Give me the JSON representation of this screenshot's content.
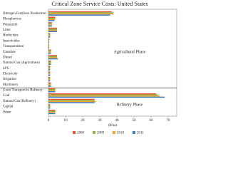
{
  "chart_data": {
    "type": "barh",
    "title": "Critical Zone Service Costs: United States",
    "xlabel": "($/ha)",
    "categories": [
      "Nitrogen Fertilizer Production",
      "Phosphorous",
      "Potassium",
      "Lime",
      "Herbicides",
      "Insecticides",
      "Transportation",
      "Gasoline",
      "Diesel",
      "Natural Gas (Agriculture)",
      "LPG",
      "Electricity",
      "Irrigation",
      "Machinery",
      "Grain Transport to Refinery",
      "Coal",
      "Natural Gas (Refinery)",
      "Capital",
      "Water"
    ],
    "series": [
      {
        "name": "2008",
        "color": "#e8542c",
        "values": [
          37,
          4,
          2,
          5,
          1,
          0.5,
          0.5,
          1.5,
          5,
          1.5,
          1,
          1,
          1,
          1.5,
          4,
          63,
          27,
          1,
          4
        ]
      },
      {
        "name": "2009",
        "color": "#8cb43e",
        "values": [
          38,
          4,
          2,
          5,
          1,
          0.5,
          0.5,
          1.5,
          5,
          1.5,
          1,
          1,
          1,
          1.5,
          4,
          64,
          27,
          1,
          4
        ]
      },
      {
        "name": "2010",
        "color": "#f2a22e",
        "values": [
          38,
          4,
          2,
          5,
          1,
          0.5,
          0.5,
          1.5,
          5,
          1.5,
          1,
          1,
          1,
          1.5,
          4,
          65,
          28,
          1,
          4
        ]
      },
      {
        "name": "2011",
        "color": "#3b7cc8",
        "values": [
          36,
          3.5,
          2,
          5,
          1,
          0.5,
          0.5,
          1.5,
          5.5,
          1.5,
          1,
          1,
          1,
          1.5,
          4,
          68,
          27,
          1,
          4
        ]
      }
    ],
    "xlim": [
      0,
      75
    ],
    "xticks": [
      0,
      10,
      20,
      30,
      40,
      50,
      60,
      70
    ],
    "annotations": [
      "Agricultural Phase",
      "Refinery Phase"
    ]
  }
}
